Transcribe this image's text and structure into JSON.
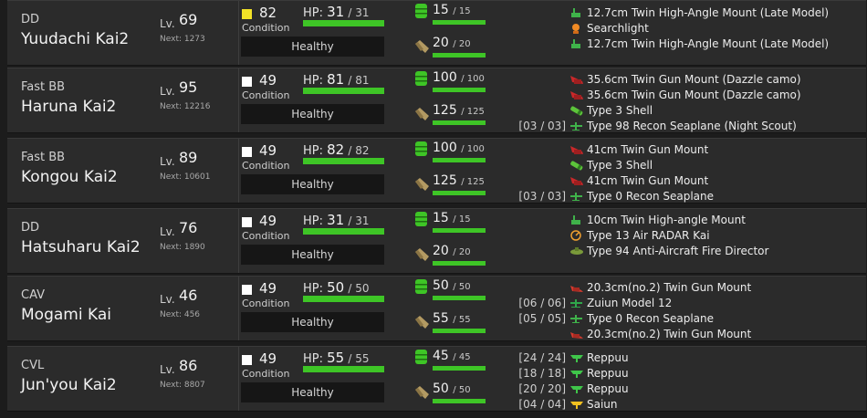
{
  "colors": {
    "bar_green": "#3ec526",
    "cond_yellow": "#f2e227",
    "cond_white": "#ffffff"
  },
  "ships": [
    {
      "type": "DD",
      "name": "Yuudachi Kai2",
      "lv_label": "Lv.",
      "lv": "69",
      "next": "Next: 1273",
      "cond": "82",
      "cond_label": "Condition",
      "cond_color": "yellow",
      "status": "Healthy",
      "hp_label": "HP:",
      "hp_cur": "31",
      "hp_max": "/ 31",
      "hp_fraction": 1.0,
      "fuel_cur": "15",
      "fuel_max": "/ 15",
      "fuel_fraction": 1.0,
      "ammo_cur": "20",
      "ammo_max": "/ 20",
      "ammo_fraction": 1.0,
      "equipment": [
        {
          "slot": "",
          "icon": "small-gun-icon",
          "name": "12.7cm Twin High-Angle Mount (Late Model)"
        },
        {
          "slot": "",
          "icon": "searchlight-icon",
          "name": "Searchlight"
        },
        {
          "slot": "",
          "icon": "small-gun-icon",
          "name": "12.7cm Twin High-Angle Mount (Late Model)"
        }
      ]
    },
    {
      "type": "Fast BB",
      "name": "Haruna Kai2",
      "lv_label": "Lv.",
      "lv": "95",
      "next": "Next: 12216",
      "cond": "49",
      "cond_label": "Condition",
      "cond_color": "white",
      "status": "Healthy",
      "hp_label": "HP:",
      "hp_cur": "81",
      "hp_max": "/ 81",
      "hp_fraction": 1.0,
      "fuel_cur": "100",
      "fuel_max": "/ 100",
      "fuel_fraction": 1.0,
      "ammo_cur": "125",
      "ammo_max": "/ 125",
      "ammo_fraction": 1.0,
      "equipment": [
        {
          "slot": "",
          "icon": "large-gun-icon",
          "name": "35.6cm Twin Gun Mount (Dazzle camo)"
        },
        {
          "slot": "",
          "icon": "large-gun-icon",
          "name": "35.6cm Twin Gun Mount (Dazzle camo)"
        },
        {
          "slot": "",
          "icon": "shell-icon",
          "name": "Type 3 Shell"
        },
        {
          "slot": "[03 / 03]",
          "icon": "seaplane-icon",
          "name": "Type 98 Recon Seaplane (Night Scout)"
        }
      ]
    },
    {
      "type": "Fast BB",
      "name": "Kongou Kai2",
      "lv_label": "Lv.",
      "lv": "89",
      "next": "Next: 10601",
      "cond": "49",
      "cond_label": "Condition",
      "cond_color": "white",
      "status": "Healthy",
      "hp_label": "HP:",
      "hp_cur": "82",
      "hp_max": "/ 82",
      "hp_fraction": 1.0,
      "fuel_cur": "100",
      "fuel_max": "/ 100",
      "fuel_fraction": 1.0,
      "ammo_cur": "125",
      "ammo_max": "/ 125",
      "ammo_fraction": 1.0,
      "equipment": [
        {
          "slot": "",
          "icon": "large-gun-icon",
          "name": "41cm Twin Gun Mount"
        },
        {
          "slot": "",
          "icon": "shell-icon",
          "name": "Type 3 Shell"
        },
        {
          "slot": "",
          "icon": "large-gun-icon",
          "name": "41cm Twin Gun Mount"
        },
        {
          "slot": "[03 / 03]",
          "icon": "seaplane-icon",
          "name": "Type 0 Recon Seaplane"
        }
      ]
    },
    {
      "type": "DD",
      "name": "Hatsuharu Kai2",
      "lv_label": "Lv.",
      "lv": "76",
      "next": "Next: 1890",
      "cond": "49",
      "cond_label": "Condition",
      "cond_color": "white",
      "status": "Healthy",
      "hp_label": "HP:",
      "hp_cur": "31",
      "hp_max": "/ 31",
      "hp_fraction": 1.0,
      "fuel_cur": "15",
      "fuel_max": "/ 15",
      "fuel_fraction": 1.0,
      "ammo_cur": "20",
      "ammo_max": "/ 20",
      "ammo_fraction": 1.0,
      "equipment": [
        {
          "slot": "",
          "icon": "small-gun-icon",
          "name": "10cm Twin High-angle Mount"
        },
        {
          "slot": "",
          "icon": "radar-icon",
          "name": "Type 13 Air RADAR Kai"
        },
        {
          "slot": "",
          "icon": "fire-director-icon",
          "name": "Type 94 Anti-Aircraft Fire Director"
        }
      ]
    },
    {
      "type": "CAV",
      "name": "Mogami Kai",
      "lv_label": "Lv.",
      "lv": "46",
      "next": "Next: 456",
      "cond": "49",
      "cond_label": "Condition",
      "cond_color": "white",
      "status": "Healthy",
      "hp_label": "HP:",
      "hp_cur": "50",
      "hp_max": "/ 50",
      "hp_fraction": 1.0,
      "fuel_cur": "50",
      "fuel_max": "/ 50",
      "fuel_fraction": 1.0,
      "ammo_cur": "55",
      "ammo_max": "/ 55",
      "ammo_fraction": 1.0,
      "equipment": [
        {
          "slot": "",
          "icon": "medium-gun-icon",
          "name": "20.3cm(no.2) Twin Gun Mount"
        },
        {
          "slot": "[06 / 06]",
          "icon": "seaplane-bomber-icon",
          "name": "Zuiun Model 12"
        },
        {
          "slot": "[05 / 05]",
          "icon": "seaplane-icon",
          "name": "Type 0 Recon Seaplane"
        },
        {
          "slot": "",
          "icon": "medium-gun-icon",
          "name": "20.3cm(no.2) Twin Gun Mount"
        }
      ]
    },
    {
      "type": "CVL",
      "name": "Jun'you Kai2",
      "lv_label": "Lv.",
      "lv": "86",
      "next": "Next: 8807",
      "cond": "49",
      "cond_label": "Condition",
      "cond_color": "white",
      "status": "Healthy",
      "hp_label": "HP:",
      "hp_cur": "55",
      "hp_max": "/ 55",
      "hp_fraction": 1.0,
      "fuel_cur": "45",
      "fuel_max": "/ 45",
      "fuel_fraction": 1.0,
      "ammo_cur": "50",
      "ammo_max": "/ 50",
      "ammo_fraction": 1.0,
      "equipment": [
        {
          "slot": "[24 / 24]",
          "icon": "fighter-icon",
          "name": "Reppuu"
        },
        {
          "slot": "[18 / 18]",
          "icon": "fighter-icon",
          "name": "Reppuu"
        },
        {
          "slot": "[20 / 20]",
          "icon": "fighter-icon",
          "name": "Reppuu"
        },
        {
          "slot": "[04 / 04]",
          "icon": "recon-plane-icon",
          "name": "Saiun"
        }
      ]
    }
  ]
}
